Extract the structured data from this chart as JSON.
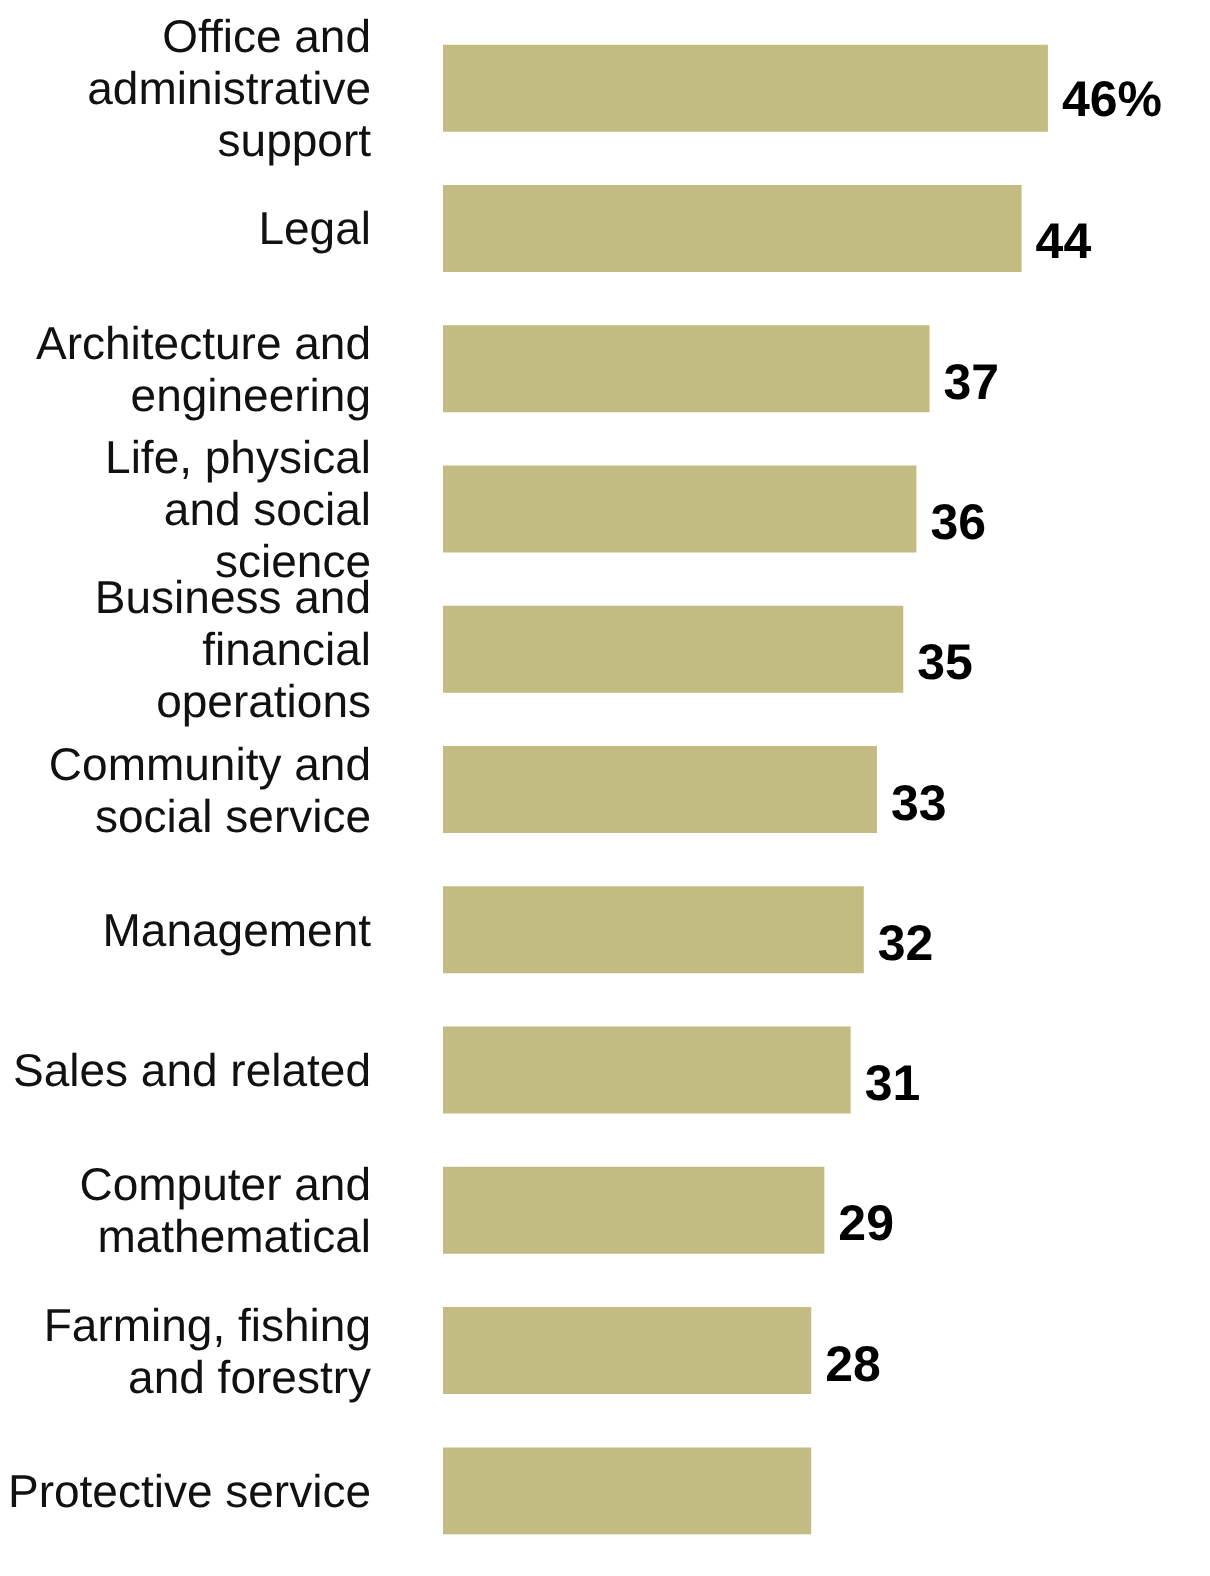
{
  "chart_data": {
    "type": "bar",
    "orientation": "horizontal",
    "color": "#c2bc82",
    "categories": [
      "Office and administrative support",
      "Legal",
      "Architecture and engineering",
      "Life, physical and social science",
      "Business and financial operations",
      "Community and social service",
      "Management",
      "Sales and related",
      "Computer and mathematical",
      "Farming, fishing and forestry",
      "Protective service"
    ],
    "values": [
      46,
      44,
      37,
      36,
      35,
      33,
      32,
      31,
      29,
      28,
      28
    ],
    "value_labels": [
      "46%",
      "44",
      "37",
      "36",
      "35",
      "33",
      "32",
      "31",
      "29",
      "28",
      null
    ]
  }
}
